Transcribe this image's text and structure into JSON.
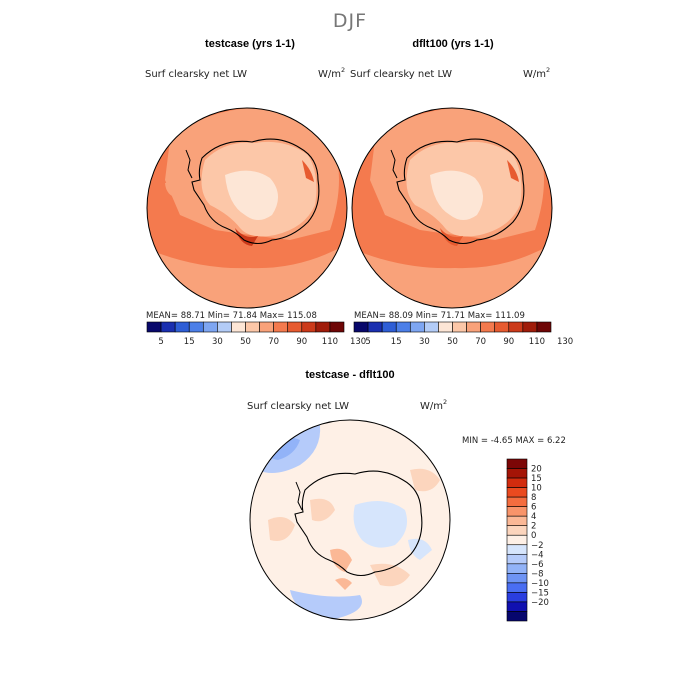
{
  "main_title": "DJF",
  "colors": {
    "abs_scale": [
      "#08086b",
      "#1a2fb0",
      "#2e5ed6",
      "#4c7fe8",
      "#7ea6f2",
      "#b3ccf7",
      "#fde6d6",
      "#fcc7a8",
      "#f9a27a",
      "#f47a4e",
      "#e75b30",
      "#cc3a1a",
      "#a01c0a",
      "#6e0606"
    ],
    "diff_scale": [
      "#06066e",
      "#1010b0",
      "#2a3ee0",
      "#4a6ef2",
      "#6e94f5",
      "#92b3f8",
      "#b5cbfa",
      "#d6e5fc",
      "#fef0e6",
      "#fcd5bd",
      "#fbb896",
      "#f8946a",
      "#f46d3f",
      "#ea4a1f",
      "#d22c0e",
      "#a41406",
      "#7c0606"
    ],
    "land_line": "#000000"
  },
  "chart_data": [
    {
      "type": "heatmap",
      "title": "testcase (yrs 1-1)",
      "field_label": "Surf clearsky net LW",
      "units": "W/m",
      "units_sup": "2",
      "stats": {
        "mean_label": "MEAN=",
        "mean": "88.71",
        "min_label": "Min=",
        "min": "71.84",
        "max_label": "Max=",
        "max": "115.08"
      },
      "colorbar_ticks": [
        "5",
        "15",
        "30",
        "50",
        "70",
        "90",
        "110",
        "130"
      ]
    },
    {
      "type": "heatmap",
      "title": "dflt100 (yrs 1-1)",
      "field_label": "Surf clearsky net LW",
      "units": "W/m",
      "units_sup": "2",
      "stats": {
        "mean_label": "MEAN=",
        "mean": "88.09",
        "min_label": "Min=",
        "min": "71.71",
        "max_label": "Max=",
        "max": "111.09"
      },
      "colorbar_ticks": [
        "5",
        "15",
        "30",
        "50",
        "70",
        "90",
        "110",
        "130"
      ]
    },
    {
      "type": "heatmap",
      "title": "testcase - dflt100",
      "field_label": "Surf clearsky net LW",
      "units": "W/m",
      "units_sup": "2",
      "stats": {
        "min_label": "MIN =",
        "min": "-4.65",
        "max_label": "MAX =",
        "max": "6.22"
      },
      "colorbar_ticks": [
        "20",
        "15",
        "10",
        "8",
        "6",
        "4",
        "2",
        "0",
        "−2",
        "−4",
        "−6",
        "−8",
        "−10",
        "−15",
        "−20"
      ]
    }
  ]
}
